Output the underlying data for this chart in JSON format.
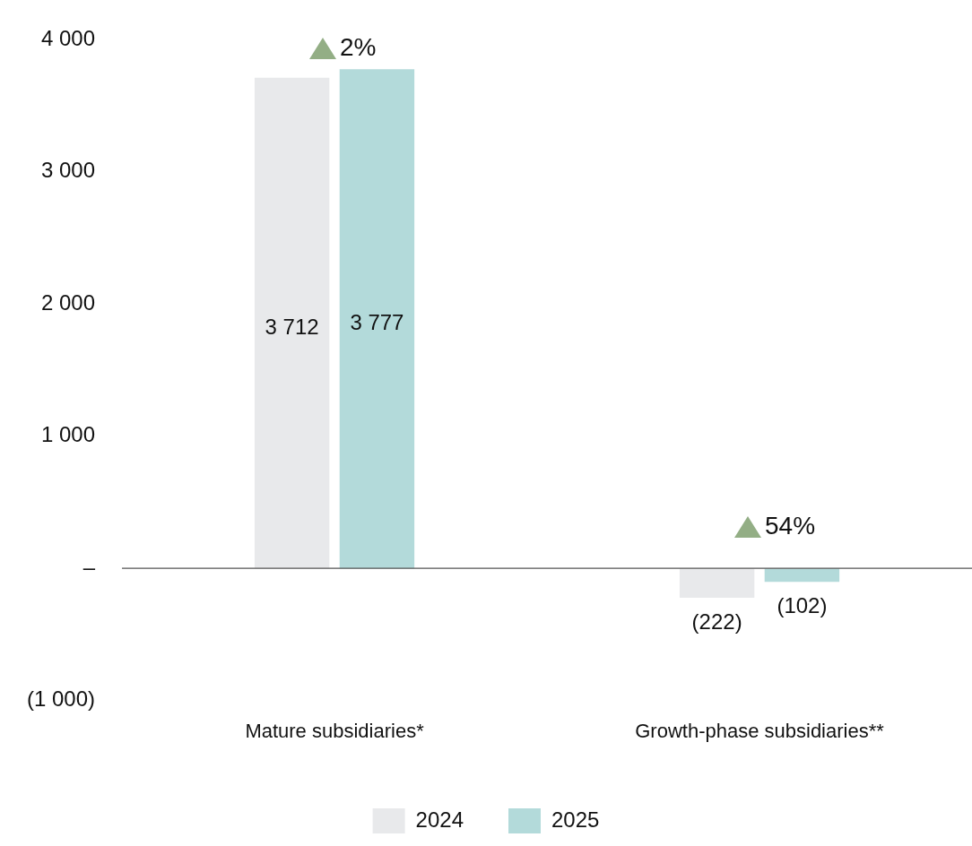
{
  "chart_data": {
    "type": "bar",
    "categories": [
      "Mature subsidiaries*",
      "Growth-phase subsidiaries**"
    ],
    "series": [
      {
        "name": "2024",
        "color": "#e8e9eb",
        "values": [
          3712,
          -222
        ],
        "value_labels": [
          "3 712",
          "(222)"
        ]
      },
      {
        "name": "2025",
        "color": "#b3dada",
        "values": [
          3777,
          -102
        ],
        "value_labels": [
          "3 777",
          "(102)"
        ]
      }
    ],
    "ylim": [
      -1000,
      4000
    ],
    "yticks": [
      {
        "value": -1000,
        "label": "(1 000)"
      },
      {
        "value": 0,
        "label": "–"
      },
      {
        "value": 1000,
        "label": "1 000"
      },
      {
        "value": 2000,
        "label": "2 000"
      },
      {
        "value": 3000,
        "label": "3 000"
      },
      {
        "value": 4000,
        "label": "4 000"
      }
    ],
    "annotations": [
      "2%",
      "54%"
    ],
    "ref_lines": [
      {
        "axis": "y",
        "value": 0,
        "color": "#555555"
      }
    ],
    "grid": false,
    "legend": "bottom"
  }
}
